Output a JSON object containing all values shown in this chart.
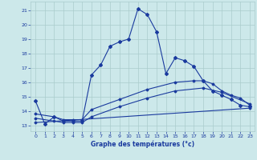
{
  "xlabel": "Graphe des températures (°c)",
  "bg_color": "#cce8ea",
  "line_color": "#1a3a9e",
  "grid_color": "#aacccc",
  "ylim": [
    12.6,
    21.6
  ],
  "xlim": [
    -0.5,
    23.5
  ],
  "yticks": [
    13,
    14,
    15,
    16,
    17,
    18,
    19,
    20,
    21
  ],
  "xticks": [
    0,
    1,
    2,
    3,
    4,
    5,
    6,
    7,
    8,
    9,
    10,
    11,
    12,
    13,
    14,
    15,
    16,
    17,
    18,
    19,
    20,
    21,
    22,
    23
  ],
  "series1_x": [
    0,
    1,
    2,
    3,
    4,
    5,
    6,
    7,
    8,
    9,
    10,
    11,
    12,
    13,
    14,
    15,
    16,
    17,
    18,
    19,
    20,
    21,
    22,
    23
  ],
  "series1_y": [
    14.7,
    13.1,
    13.6,
    13.3,
    13.3,
    13.3,
    16.5,
    17.2,
    18.5,
    18.8,
    19.0,
    21.1,
    20.7,
    19.5,
    16.6,
    17.7,
    17.5,
    17.1,
    16.1,
    15.4,
    15.1,
    14.8,
    14.4,
    14.3
  ],
  "series2_x": [
    0,
    2,
    3,
    4,
    5,
    6,
    9,
    12,
    15,
    17,
    18,
    19,
    20,
    21,
    22,
    23
  ],
  "series2_y": [
    13.8,
    13.6,
    13.4,
    13.4,
    13.4,
    14.1,
    14.8,
    15.5,
    16.0,
    16.1,
    16.1,
    15.9,
    15.4,
    15.1,
    14.9,
    14.4
  ],
  "series3_x": [
    0,
    2,
    3,
    4,
    5,
    6,
    9,
    12,
    15,
    18,
    20,
    23
  ],
  "series3_y": [
    13.5,
    13.3,
    13.2,
    13.2,
    13.2,
    13.6,
    14.3,
    14.9,
    15.4,
    15.6,
    15.3,
    14.5
  ],
  "series4_x": [
    0,
    23
  ],
  "series4_y": [
    13.2,
    14.2
  ]
}
